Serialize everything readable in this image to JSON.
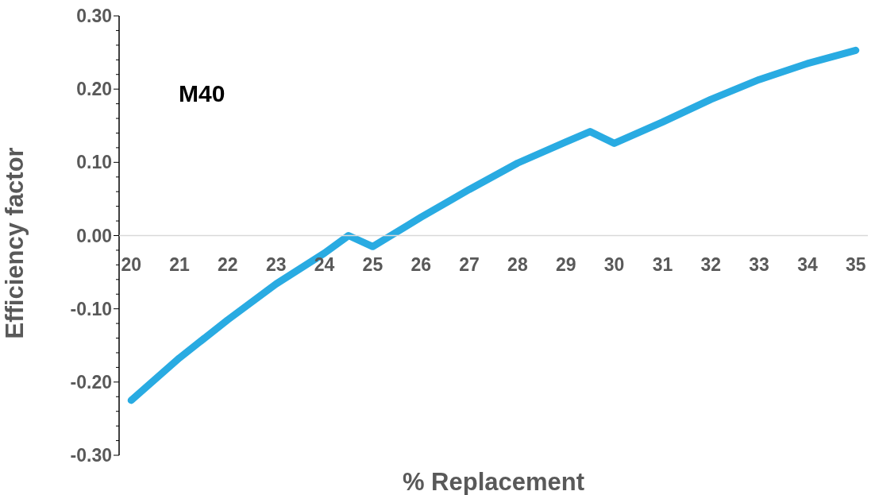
{
  "chart_data": {
    "type": "line",
    "xlabel": "% Replacement",
    "ylabel": "Efficiency factor",
    "annotations": [
      "M40"
    ],
    "x": [
      20,
      21,
      22,
      23,
      24,
      24.5,
      25,
      26,
      27,
      28,
      29,
      29.5,
      30,
      31,
      32,
      33,
      34,
      35
    ],
    "series": [
      {
        "color": "#29abe2",
        "values": [
          -0.225,
          -0.167,
          -0.115,
          -0.066,
          -0.024,
          0.0,
          -0.015,
          0.025,
          0.063,
          0.099,
          0.128,
          0.142,
          0.126,
          0.155,
          0.186,
          0.213,
          0.235,
          0.253
        ]
      }
    ],
    "xlim": [
      19.75,
      35.25
    ],
    "xticks": [
      20,
      21,
      22,
      23,
      24,
      25,
      26,
      27,
      28,
      29,
      30,
      31,
      32,
      33,
      34,
      35
    ],
    "ylim": [
      -0.3,
      0.3
    ],
    "yticks": [
      {
        "value": -0.3,
        "label": "-0.30"
      },
      {
        "value": -0.2,
        "label": "-0.20"
      },
      {
        "value": -0.1,
        "label": "-0.10"
      },
      {
        "value": 0,
        "label": "0.00"
      },
      {
        "value": 0.1,
        "label": "0.10"
      },
      {
        "value": 0.2,
        "label": "0.20"
      },
      {
        "value": 0.3,
        "label": "0.30"
      }
    ],
    "grid": false,
    "legend": false,
    "marker": "none",
    "line_style": "solid"
  }
}
